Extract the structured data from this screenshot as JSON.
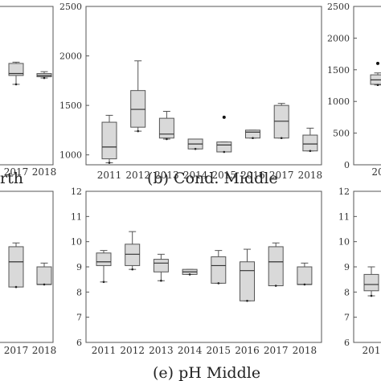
{
  "chart_data": [
    {
      "id": "cond_north",
      "type": "boxplot",
      "caption": "rth",
      "categories": [
        "2017",
        "2018"
      ],
      "ylim": [
        0,
        2500
      ],
      "boxes": [
        {
          "x": "2017",
          "min": 1270,
          "q1": 1410,
          "median": 1440,
          "q3": 1600,
          "max": 1620
        },
        {
          "x": "2018",
          "min": 1370,
          "q1": 1390,
          "median": 1410,
          "q3": 1440,
          "max": 1470
        }
      ]
    },
    {
      "id": "cond_middle",
      "type": "boxplot",
      "caption": "(b) Cond. Middle",
      "categories": [
        "2011",
        "2012",
        "2013",
        "2014",
        "2015",
        "2016",
        "2017",
        "2018"
      ],
      "yticks": [
        "1000",
        "1500",
        "2000",
        "2500"
      ],
      "ylim": [
        900,
        2500
      ],
      "boxes": [
        {
          "x": "2011",
          "min": 920,
          "q1": 960,
          "median": 1080,
          "q3": 1330,
          "max": 1400
        },
        {
          "x": "2012",
          "min": 1240,
          "q1": 1280,
          "median": 1460,
          "q3": 1650,
          "max": 1950
        },
        {
          "x": "2013",
          "min": 1160,
          "q1": 1170,
          "median": 1210,
          "q3": 1370,
          "max": 1440
        },
        {
          "x": "2014",
          "min": 1060,
          "q1": 1060,
          "median": 1110,
          "q3": 1160,
          "max": 1160
        },
        {
          "x": "2015",
          "min": 1030,
          "q1": 1030,
          "median": 1100,
          "q3": 1130,
          "max": 1130,
          "outliers": [
            1380
          ]
        },
        {
          "x": "2016",
          "min": 1170,
          "q1": 1170,
          "median": 1230,
          "q3": 1250,
          "max": 1250
        },
        {
          "x": "2017",
          "min": 1170,
          "q1": 1170,
          "median": 1340,
          "q3": 1500,
          "max": 1520
        },
        {
          "x": "2018",
          "min": 1040,
          "q1": 1040,
          "median": 1110,
          "q3": 1200,
          "max": 1270
        }
      ]
    },
    {
      "id": "cond_south",
      "type": "boxplot",
      "caption": "",
      "categories": [
        "20"
      ],
      "yticks": [
        "0",
        "500",
        "1000",
        "1500",
        "2000",
        "2500"
      ],
      "ylim": [
        0,
        2500
      ],
      "boxes": [
        {
          "x": "20",
          "min": 1260,
          "q1": 1270,
          "median": 1340,
          "q3": 1420,
          "max": 1450,
          "outliers": [
            1600
          ]
        }
      ]
    },
    {
      "id": "ph_north",
      "type": "boxplot",
      "caption": "",
      "categories": [
        "2017",
        "2018"
      ],
      "ylim": [
        6,
        12
      ],
      "boxes": [
        {
          "x": "2017",
          "min": 8.2,
          "q1": 8.2,
          "median": 9.2,
          "q3": 9.8,
          "max": 9.95
        },
        {
          "x": "2018",
          "min": 8.3,
          "q1": 8.3,
          "median": 8.3,
          "q3": 9.0,
          "max": 9.15
        }
      ]
    },
    {
      "id": "ph_middle",
      "type": "boxplot",
      "caption": "(e) pH Middle",
      "categories": [
        "2011",
        "2012",
        "2013",
        "2014",
        "2015",
        "2016",
        "2017",
        "2018"
      ],
      "yticks": [
        "6",
        "7",
        "8",
        "9",
        "10",
        "11",
        "12"
      ],
      "ylim": [
        6,
        12
      ],
      "boxes": [
        {
          "x": "2011",
          "min": 8.4,
          "q1": 9.05,
          "median": 9.2,
          "q3": 9.55,
          "max": 9.65
        },
        {
          "x": "2012",
          "min": 8.9,
          "q1": 9.05,
          "median": 9.5,
          "q3": 9.9,
          "max": 10.4
        },
        {
          "x": "2013",
          "min": 8.45,
          "q1": 8.8,
          "median": 9.15,
          "q3": 9.3,
          "max": 9.5
        },
        {
          "x": "2014",
          "min": 8.7,
          "q1": 8.7,
          "median": 8.8,
          "q3": 8.9,
          "max": 8.9
        },
        {
          "x": "2015",
          "min": 8.35,
          "q1": 8.35,
          "median": 9.05,
          "q3": 9.4,
          "max": 9.65
        },
        {
          "x": "2016",
          "min": 7.65,
          "q1": 7.65,
          "median": 8.85,
          "q3": 9.2,
          "max": 9.7
        },
        {
          "x": "2017",
          "min": 8.25,
          "q1": 8.25,
          "median": 9.2,
          "q3": 9.8,
          "max": 9.95
        },
        {
          "x": "2018",
          "min": 8.3,
          "q1": 8.3,
          "median": 8.3,
          "q3": 9.0,
          "max": 9.15
        }
      ]
    },
    {
      "id": "ph_south",
      "type": "boxplot",
      "caption": "",
      "categories": [
        "201"
      ],
      "yticks": [
        "6",
        "7",
        "8",
        "9",
        "10",
        "11",
        "12"
      ],
      "ylim": [
        6,
        12
      ],
      "boxes": [
        {
          "x": "201",
          "min": 7.85,
          "q1": 8.05,
          "median": 8.3,
          "q3": 8.7,
          "max": 9.0
        }
      ]
    }
  ]
}
